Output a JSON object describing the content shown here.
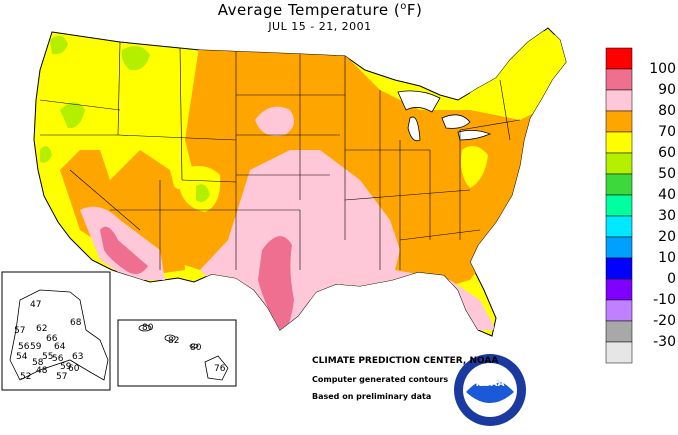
{
  "title": "Average Temperature (",
  "title_unit": "F)",
  "subtitle": "JUL 15 - 21, 2001",
  "legend": {
    "labels": [
      "100",
      "90",
      "80",
      "70",
      "60",
      "50",
      "40",
      "30",
      "20",
      "10",
      "0",
      "-10",
      "-20",
      "-30"
    ],
    "colors": [
      "#ff0000",
      "#ee6f8f",
      "#ffc8d8",
      "#ffa500",
      "#ffff00",
      "#b4ef00",
      "#3cd83c",
      "#00ff9e",
      "#00e8ff",
      "#00a0ff",
      "#0000ff",
      "#8000ff",
      "#c080ff",
      "#a8a8a8",
      "#e6e6e6"
    ]
  },
  "alaska_values": [
    "47",
    "68",
    "57",
    "62",
    "66",
    "56",
    "59",
    "64",
    "54",
    "58",
    "55",
    "56",
    "63",
    "48",
    "59",
    "60",
    "52",
    "57"
  ],
  "hawaii_values": [
    "80",
    "82",
    "80",
    "76"
  ],
  "credits": {
    "line1": "CLIMATE PREDICTION CENTER, NOAA",
    "line2": "Computer generated contours",
    "line3": "Based on preliminary data"
  },
  "noaa_logo_text": "NOAA",
  "noaa_ring_text": "NATIONAL OCEANIC AND ATMOSPHERIC ADMINISTRATION · U.S. DEPARTMENT OF COMMERCE"
}
